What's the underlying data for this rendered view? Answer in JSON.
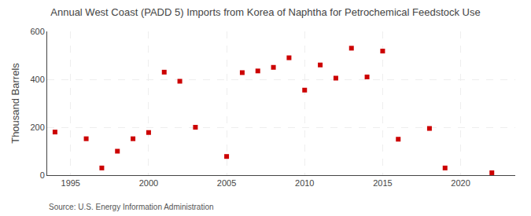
{
  "chart_data": {
    "type": "scatter",
    "title": "Annual West Coast (PADD 5) Imports from Korea of Naphtha for Petrochemical Feedstock Use",
    "ylabel": "Thousand Barrels",
    "annotations": [
      "Source: U.S. Energy Information Administration"
    ],
    "x": [
      1994,
      1996,
      1997,
      1998,
      1999,
      2000,
      2001,
      2002,
      2003,
      2005,
      2006,
      2007,
      2008,
      2009,
      2010,
      2011,
      2012,
      2013,
      2014,
      2015,
      2016,
      2018,
      2019,
      2022
    ],
    "values": [
      180,
      152,
      30,
      100,
      152,
      178,
      430,
      392,
      200,
      78,
      428,
      435,
      450,
      490,
      355,
      460,
      405,
      530,
      410,
      518,
      150,
      195,
      30,
      10
    ],
    "color": "#cc0000",
    "marker": "square",
    "xlim": [
      1993.5,
      2023.5
    ],
    "ylim": [
      0,
      600
    ],
    "xticks": [
      1995,
      2000,
      2005,
      2010,
      2015,
      2020
    ],
    "yticks": [
      0,
      200,
      400,
      600
    ],
    "grid": true
  }
}
